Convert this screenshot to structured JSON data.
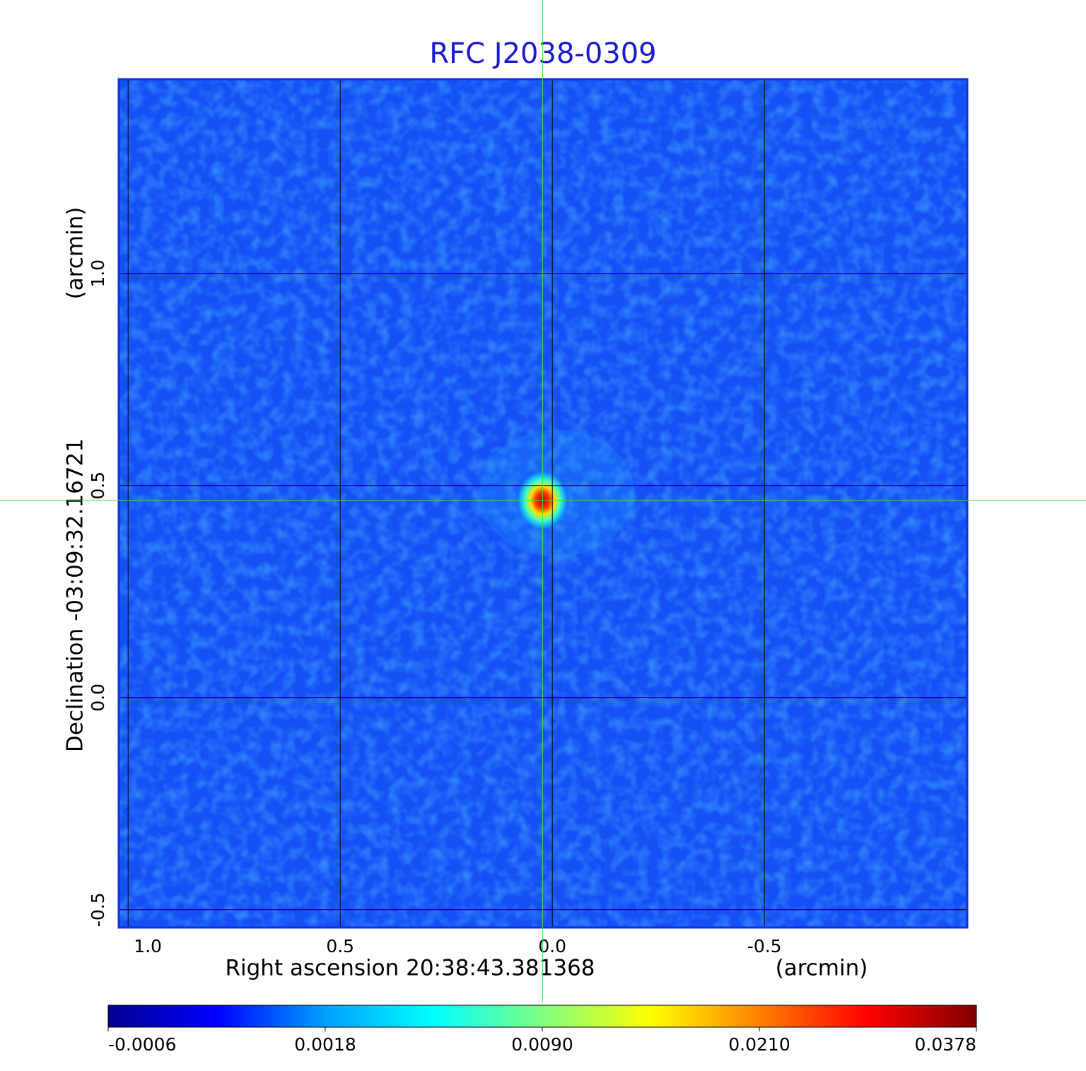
{
  "chart_data": {
    "type": "image",
    "title": "RFC J2038-0309",
    "x_label": "Right ascension  20:38:43.381368",
    "x_unit": "(arcmin)",
    "y_label": "Declination  -03:09:32.16721",
    "y_unit": "(arcmin)",
    "xlim": [
      1.022,
      -0.978
    ],
    "ylim": [
      -0.542,
      1.458
    ],
    "xticks": [
      {
        "value": 1,
        "label": "1.0"
      },
      0.5,
      {
        "value": 0,
        "label": "0.0"
      },
      -0.5
    ],
    "yticks": [
      -0.5,
      {
        "value": 0,
        "label": "0.0"
      },
      0.5,
      {
        "value": 1,
        "label": "1.0"
      }
    ],
    "grid": true,
    "source_position": {
      "x": 0.023,
      "y": 0.465
    },
    "colormap": [
      "#00008f",
      "#0000ff",
      "#00a0ff",
      "#00ffff",
      "#80ff80",
      "#ffff00",
      "#ff8000",
      "#ff0000",
      "#800000"
    ],
    "colorbar_ticks": [
      -0.0006,
      0.0018,
      {
        "value": 0.009,
        "label": "0.0090"
      },
      {
        "value": 0.021,
        "label": "0.0210"
      },
      0.0378
    ]
  }
}
